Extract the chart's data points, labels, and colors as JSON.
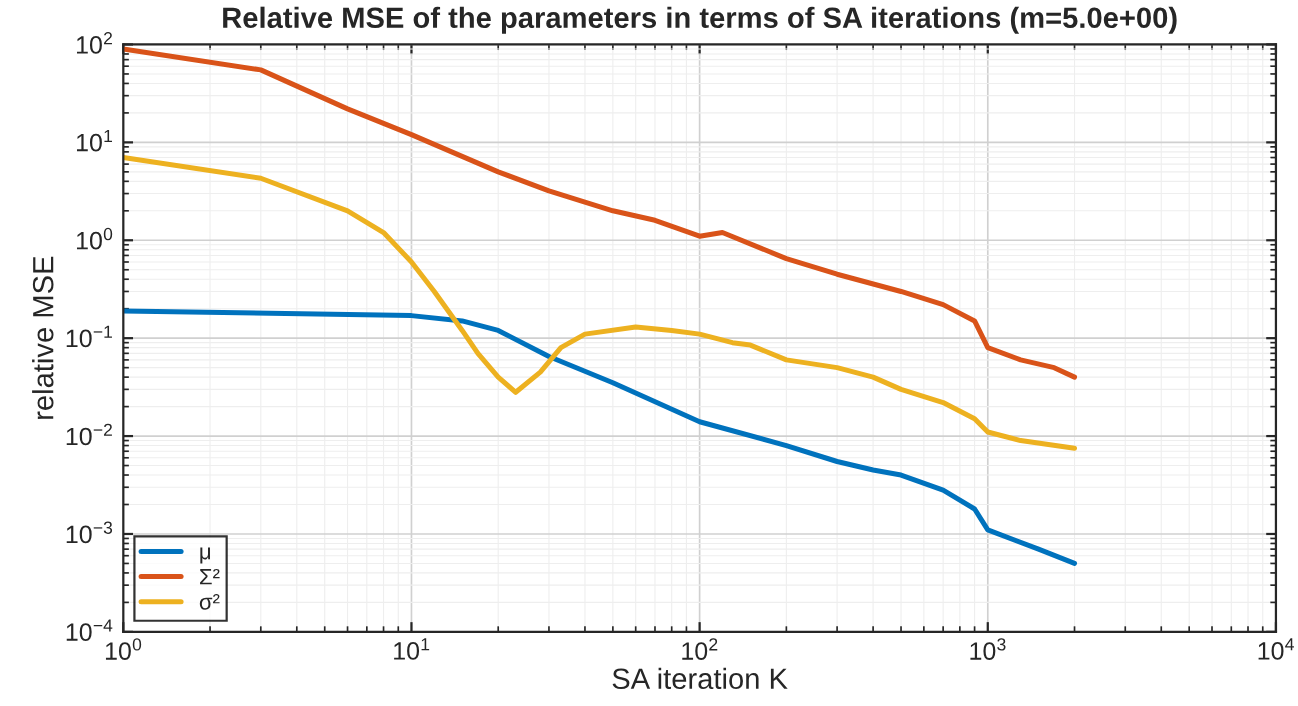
{
  "chart_data": {
    "type": "line",
    "title": "Relative MSE of the parameters in terms of SA iterations (m=5.0e+00)",
    "xlabel": "SA iteration K",
    "ylabel": "relative MSE",
    "log": "xy",
    "grid": true,
    "legend": "bottom left",
    "xlim": [
      1,
      10000
    ],
    "xticks": [
      {
        "value": 1,
        "label": "10$^{0}$"
      },
      {
        "value": 10,
        "label": "10$^{1}$"
      },
      {
        "value": 100,
        "label": "10$^{2}$"
      },
      {
        "value": 1000,
        "label": "10$^{3}$"
      },
      {
        "value": 10000,
        "label": "10$^{4}$"
      }
    ],
    "ylim": [
      0.0001,
      100
    ],
    "yticks": [
      {
        "value": 0.0001,
        "label": "10$^{−4}$"
      },
      {
        "value": 0.001,
        "label": "10$^{−3}$"
      },
      {
        "value": 0.01,
        "label": "10$^{−2}$"
      },
      {
        "value": 0.1,
        "label": "10$^{−1}$"
      },
      {
        "value": 1,
        "label": "10$^{0}$"
      },
      {
        "value": 10,
        "label": "10$^{1}$"
      },
      {
        "value": 100,
        "label": "10$^{2}$"
      }
    ],
    "series": [
      {
        "name": "μ",
        "color": "#0072bd",
        "x": [
          1,
          10,
          15,
          20,
          30,
          50,
          100,
          200,
          300,
          400,
          500,
          700,
          900,
          1000,
          1500,
          2000
        ],
        "values": [
          0.19,
          0.17,
          0.15,
          0.12,
          0.065,
          0.035,
          0.014,
          0.008,
          0.0055,
          0.0045,
          0.004,
          0.0028,
          0.0018,
          0.0011,
          0.0007,
          0.0005
        ]
      },
      {
        "name": "Σ²",
        "color": "#d95319",
        "x": [
          1,
          3,
          6,
          10,
          20,
          30,
          50,
          70,
          100,
          120,
          200,
          300,
          500,
          700,
          900,
          1000,
          1300,
          1700,
          2000
        ],
        "values": [
          90,
          55,
          22,
          12,
          5,
          3.2,
          2.0,
          1.6,
          1.1,
          1.2,
          0.65,
          0.45,
          0.3,
          0.22,
          0.15,
          0.08,
          0.06,
          0.05,
          0.04
        ]
      },
      {
        "name": "σ²",
        "color": "#edb120",
        "x": [
          1,
          3,
          6,
          8,
          10,
          12,
          15,
          17,
          20,
          23,
          28,
          33,
          40,
          60,
          80,
          100,
          130,
          150,
          200,
          300,
          400,
          500,
          700,
          900,
          1000,
          1300,
          2000
        ],
        "values": [
          7,
          4.3,
          2.0,
          1.2,
          0.6,
          0.3,
          0.12,
          0.07,
          0.04,
          0.028,
          0.045,
          0.08,
          0.11,
          0.13,
          0.12,
          0.11,
          0.09,
          0.085,
          0.06,
          0.05,
          0.04,
          0.03,
          0.022,
          0.015,
          0.011,
          0.009,
          0.0075
        ]
      }
    ]
  }
}
